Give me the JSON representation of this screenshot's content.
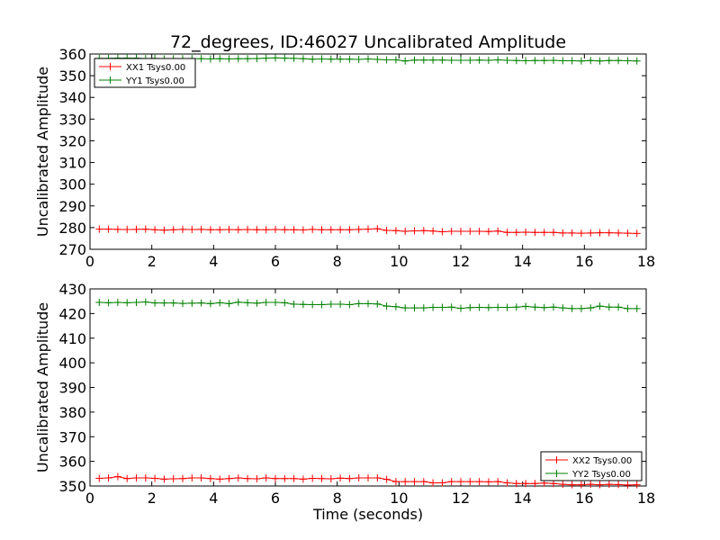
{
  "chart_data": [
    {
      "type": "line",
      "title": "72_degrees, ID:46027 Uncalibrated Amplitude",
      "xlabel": "",
      "ylabel": "Uncalibrated Amplitude",
      "xlim": [
        0,
        18
      ],
      "ylim": [
        270,
        360
      ],
      "xticks": [
        0,
        2,
        4,
        6,
        8,
        10,
        12,
        14,
        16,
        18
      ],
      "yticks": [
        270,
        280,
        290,
        300,
        310,
        320,
        330,
        340,
        350,
        360
      ],
      "grid": false,
      "legend_position": "top-left",
      "x": [
        0.3,
        0.6,
        0.9,
        1.2,
        1.5,
        1.8,
        2.1,
        2.4,
        2.7,
        3.0,
        3.3,
        3.6,
        3.9,
        4.2,
        4.5,
        4.8,
        5.1,
        5.4,
        5.7,
        6.0,
        6.3,
        6.6,
        6.9,
        7.2,
        7.5,
        7.8,
        8.1,
        8.4,
        8.7,
        9.0,
        9.3,
        9.6,
        9.9,
        10.2,
        10.5,
        10.8,
        11.1,
        11.4,
        11.7,
        12.0,
        12.3,
        12.6,
        12.9,
        13.2,
        13.5,
        13.8,
        14.1,
        14.4,
        14.7,
        15.0,
        15.3,
        15.6,
        15.9,
        16.2,
        16.5,
        16.8,
        17.1,
        17.4,
        17.7
      ],
      "series": [
        {
          "name": "XX1 Tsys0.00",
          "color": "#ff0000",
          "values": [
            279.3,
            279.3,
            279.2,
            279.1,
            279.2,
            279.3,
            279.0,
            278.8,
            279.0,
            279.2,
            279.1,
            279.2,
            279.0,
            279.0,
            279.1,
            279.0,
            279.1,
            279.0,
            279.0,
            279.1,
            279.0,
            279.0,
            278.9,
            279.2,
            279.0,
            279.0,
            279.0,
            279.0,
            279.2,
            279.3,
            279.5,
            278.7,
            278.6,
            278.3,
            278.5,
            278.6,
            278.4,
            278.1,
            278.3,
            278.3,
            278.3,
            278.3,
            278.2,
            278.4,
            277.8,
            277.8,
            277.9,
            277.8,
            277.8,
            277.8,
            277.5,
            277.5,
            277.4,
            277.5,
            277.6,
            277.6,
            277.5,
            277.4,
            277.3
          ]
        },
        {
          "name": "YY1 Tsys0.00",
          "color": "#008000",
          "values": [
            358.0,
            358.0,
            358.1,
            358.1,
            358.1,
            357.9,
            358.0,
            357.7,
            357.8,
            357.8,
            357.9,
            357.8,
            357.7,
            357.8,
            357.7,
            357.8,
            357.8,
            357.9,
            358.1,
            358.2,
            358.1,
            358.0,
            357.8,
            357.6,
            357.7,
            357.6,
            357.6,
            357.6,
            357.5,
            357.7,
            357.5,
            357.3,
            357.3,
            356.8,
            357.2,
            357.2,
            357.2,
            357.2,
            357.1,
            357.1,
            357.1,
            357.2,
            357.1,
            357.3,
            357.1,
            357.0,
            356.9,
            357.0,
            357.0,
            357.1,
            356.9,
            356.9,
            356.8,
            357.0,
            356.8,
            357.0,
            357.0,
            356.9,
            356.8
          ]
        }
      ]
    },
    {
      "type": "line",
      "title": "",
      "xlabel": "Time (seconds)",
      "ylabel": "Uncalibrated Amplitude",
      "xlim": [
        0,
        18
      ],
      "ylim": [
        350,
        430
      ],
      "xticks": [
        0,
        2,
        4,
        6,
        8,
        10,
        12,
        14,
        16,
        18
      ],
      "yticks": [
        350,
        360,
        370,
        380,
        390,
        400,
        410,
        420,
        430
      ],
      "grid": false,
      "legend_position": "bottom-right",
      "x": [
        0.3,
        0.6,
        0.9,
        1.2,
        1.5,
        1.8,
        2.1,
        2.4,
        2.7,
        3.0,
        3.3,
        3.6,
        3.9,
        4.2,
        4.5,
        4.8,
        5.1,
        5.4,
        5.7,
        6.0,
        6.3,
        6.6,
        6.9,
        7.2,
        7.5,
        7.8,
        8.1,
        8.4,
        8.7,
        9.0,
        9.3,
        9.6,
        9.9,
        10.2,
        10.5,
        10.8,
        11.1,
        11.4,
        11.7,
        12.0,
        12.3,
        12.6,
        12.9,
        13.2,
        13.5,
        13.8,
        14.1,
        14.4,
        14.7,
        15.0,
        15.3,
        15.6,
        15.9,
        16.2,
        16.5,
        16.8,
        17.1,
        17.4,
        17.7
      ],
      "series": [
        {
          "name": "XX2 Tsys0.00",
          "color": "#ff0000",
          "values": [
            353.1,
            353.3,
            353.8,
            353.0,
            353.3,
            353.3,
            353.1,
            352.8,
            352.9,
            353.0,
            353.3,
            353.3,
            353.0,
            352.8,
            353.0,
            353.3,
            353.0,
            352.9,
            353.3,
            353.0,
            353.0,
            353.0,
            352.8,
            353.1,
            353.0,
            352.9,
            353.2,
            353.0,
            353.3,
            353.3,
            353.3,
            352.7,
            351.8,
            351.8,
            351.8,
            351.8,
            351.3,
            351.3,
            351.8,
            351.8,
            351.8,
            351.8,
            351.7,
            351.8,
            351.3,
            351.0,
            351.0,
            351.0,
            351.2,
            351.0,
            350.7,
            350.5,
            350.5,
            350.7,
            350.5,
            350.7,
            350.6,
            350.4,
            350.5
          ]
        },
        {
          "name": "YY2 Tsys0.00",
          "color": "#008000",
          "values": [
            424.5,
            424.4,
            424.5,
            424.4,
            424.5,
            424.7,
            424.3,
            424.3,
            424.3,
            424.1,
            424.2,
            424.3,
            424.0,
            424.4,
            424.0,
            424.6,
            424.4,
            424.2,
            424.5,
            424.5,
            424.4,
            423.8,
            423.7,
            423.6,
            423.6,
            423.8,
            423.8,
            423.6,
            424.0,
            424.0,
            423.9,
            423.0,
            422.8,
            422.3,
            422.3,
            422.3,
            422.5,
            422.5,
            422.6,
            422.1,
            422.4,
            422.5,
            422.4,
            422.5,
            422.5,
            422.6,
            422.9,
            422.6,
            422.4,
            422.6,
            422.3,
            422.0,
            422.0,
            422.3,
            423.0,
            422.6,
            422.6,
            422.0,
            422.0
          ]
        }
      ]
    }
  ]
}
